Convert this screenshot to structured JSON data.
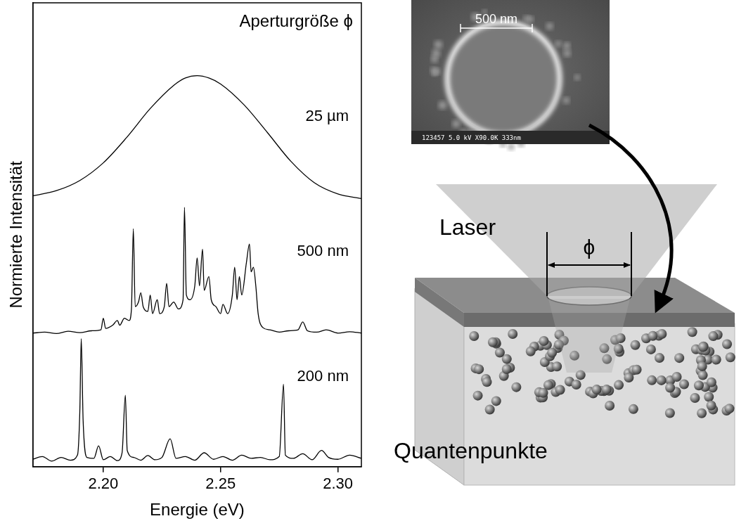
{
  "chart_data": {
    "type": "line",
    "title": "Aperturgröße ϕ",
    "x_label": "Energie (eV)",
    "y_label": "Normierte Intensität",
    "xlim": [
      2.17,
      2.31
    ],
    "xticks": [
      {
        "value": 2.2,
        "label": "2.20"
      },
      {
        "value": 2.25,
        "label": "2.25"
      },
      {
        "value": 2.3,
        "label": "2.30"
      }
    ],
    "ylim": [
      0,
      10
    ],
    "tick_labels": "x",
    "grid": false,
    "series": [
      {
        "name": "25 µm",
        "color": "#000000",
        "x": [
          2.17,
          2.18,
          2.19,
          2.2,
          2.21,
          2.22,
          2.23,
          2.235,
          2.24,
          2.245,
          2.25,
          2.26,
          2.27,
          2.28,
          2.29,
          2.3,
          2.31
        ],
        "values": [
          5.84,
          5.95,
          6.17,
          6.55,
          7.1,
          7.72,
          8.22,
          8.38,
          8.43,
          8.38,
          8.25,
          7.8,
          7.2,
          6.58,
          6.12,
          5.88,
          5.78
        ]
      },
      {
        "name": "500 nm",
        "color": "#000000",
        "x": [
          2.17,
          2.175,
          2.18,
          2.185,
          2.19,
          2.195,
          2.199,
          2.2,
          2.201,
          2.204,
          2.206,
          2.207,
          2.209,
          2.211,
          2.212,
          2.2128,
          2.2136,
          2.215,
          2.216,
          2.217,
          2.219,
          2.22,
          2.221,
          2.223,
          2.224,
          2.226,
          2.227,
          2.228,
          2.23,
          2.232,
          2.234,
          2.2346,
          2.2354,
          2.237,
          2.239,
          2.24,
          2.241,
          2.2423,
          2.243,
          2.245,
          2.246,
          2.248,
          2.25,
          2.251,
          2.253,
          2.255,
          2.256,
          2.257,
          2.258,
          2.259,
          2.261,
          2.2623,
          2.263,
          2.264,
          2.265,
          2.266,
          2.268,
          2.271,
          2.275,
          2.279,
          2.283,
          2.285,
          2.287,
          2.291,
          2.295,
          2.3,
          2.305,
          2.31
        ],
        "values": [
          2.88,
          2.9,
          2.87,
          2.92,
          2.89,
          2.93,
          2.95,
          3.2,
          2.98,
          3.05,
          3.15,
          3.05,
          3.2,
          3.15,
          3.4,
          5.13,
          3.45,
          3.55,
          3.75,
          3.45,
          3.35,
          3.7,
          3.3,
          3.6,
          3.3,
          3.45,
          3.95,
          3.45,
          3.55,
          3.4,
          3.6,
          5.59,
          3.7,
          3.6,
          3.9,
          4.5,
          3.9,
          4.69,
          3.8,
          4.1,
          3.6,
          3.45,
          3.3,
          3.5,
          3.3,
          3.7,
          4.3,
          3.6,
          4.1,
          3.7,
          4.4,
          4.8,
          4.2,
          4.3,
          3.9,
          3.3,
          3.0,
          2.95,
          2.9,
          2.93,
          2.95,
          3.12,
          2.93,
          2.9,
          2.95,
          2.88,
          2.91,
          2.88
        ]
      },
      {
        "name": "200 nm",
        "color": "#000000",
        "x": [
          2.17,
          2.174,
          2.178,
          2.182,
          2.186,
          2.189,
          2.19,
          2.1906,
          2.1914,
          2.193,
          2.196,
          2.198,
          2.2,
          2.203,
          2.206,
          2.208,
          2.2094,
          2.2102,
          2.213,
          2.216,
          2.219,
          2.222,
          2.225,
          2.2285,
          2.231,
          2.235,
          2.239,
          2.243,
          2.247,
          2.251,
          2.255,
          2.259,
          2.263,
          2.267,
          2.271,
          2.275,
          2.2768,
          2.2776,
          2.281,
          2.285,
          2.289,
          2.293,
          2.296,
          2.3,
          2.305,
          2.31
        ],
        "values": [
          0.16,
          0.22,
          0.12,
          0.2,
          0.14,
          0.25,
          1.2,
          2.76,
          1.0,
          0.2,
          0.18,
          0.45,
          0.15,
          0.22,
          0.13,
          0.3,
          1.54,
          0.35,
          0.2,
          0.14,
          0.24,
          0.15,
          0.2,
          0.6,
          0.18,
          0.22,
          0.14,
          0.3,
          0.16,
          0.22,
          0.14,
          0.25,
          0.18,
          0.2,
          0.15,
          0.22,
          1.78,
          0.25,
          0.18,
          0.28,
          0.15,
          0.35,
          0.2,
          0.16,
          0.25,
          0.18
        ]
      }
    ]
  },
  "diagram": {
    "sem_image": {
      "scale_bar": "500 nm",
      "caption": "123457 5.0 kV X90.0K 333nm"
    },
    "laser_label": "Laser",
    "aperture_label": "ϕ",
    "sample_label": "Quantenpunkte"
  }
}
